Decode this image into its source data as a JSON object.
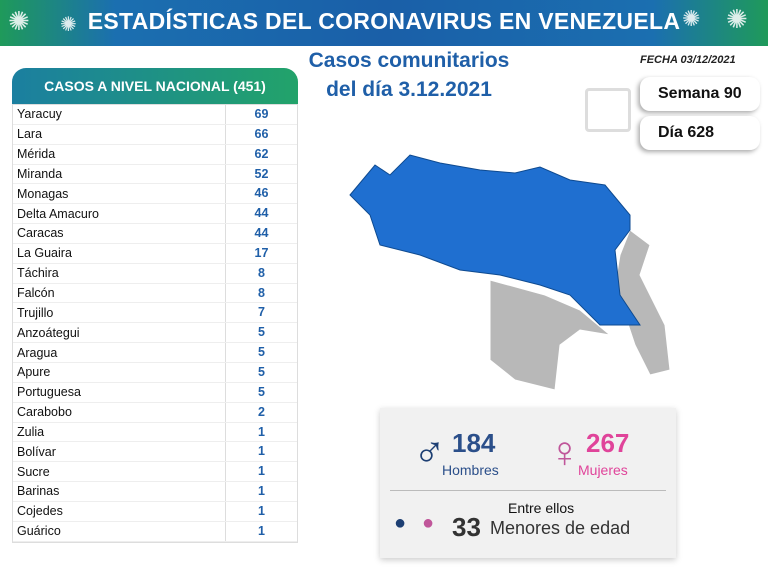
{
  "header": {
    "title": "ESTADÍSTICAS DEL CORONAVIRUS EN VENEZUELA"
  },
  "subtitle": {
    "line1": "Casos comunitarios",
    "line2": "del día 3.12.2021"
  },
  "fecha": "FECHA 03/12/2021",
  "semana": "Semana 90",
  "dia": "Día 628",
  "table": {
    "title": "CASOS A NIVEL NACIONAL  (451)",
    "rows": [
      {
        "name": "Yaracuy",
        "value": "69"
      },
      {
        "name": "Lara",
        "value": "66"
      },
      {
        "name": "Mérida",
        "value": "62"
      },
      {
        "name": "Miranda",
        "value": "52"
      },
      {
        "name": "Monagas",
        "value": "46"
      },
      {
        "name": "Delta Amacuro",
        "value": "44"
      },
      {
        "name": "Caracas",
        "value": "44"
      },
      {
        "name": "La Guaira",
        "value": "17"
      },
      {
        "name": "Táchira",
        "value": "8"
      },
      {
        "name": "Falcón",
        "value": "8"
      },
      {
        "name": "Trujillo",
        "value": "7"
      },
      {
        "name": "Anzoátegui",
        "value": "5"
      },
      {
        "name": "Aragua",
        "value": "5"
      },
      {
        "name": "Apure",
        "value": "5"
      },
      {
        "name": "Portuguesa",
        "value": "5"
      },
      {
        "name": "Carabobo",
        "value": "2"
      },
      {
        "name": "Zulia",
        "value": "1"
      },
      {
        "name": "Bolívar",
        "value": "1"
      },
      {
        "name": "Sucre",
        "value": "1"
      },
      {
        "name": "Barinas",
        "value": "1"
      },
      {
        "name": "Cojedes",
        "value": "1"
      },
      {
        "name": "Guárico",
        "value": "1"
      }
    ]
  },
  "stats": {
    "hombres_count": "184",
    "hombres_label": "Hombres",
    "mujeres_count": "267",
    "mujeres_label": "Mujeres",
    "entre": "Entre ellos",
    "menores_count": "33",
    "menores_label": "Menores de edad"
  },
  "colors": {
    "blue": "#1f5fa8",
    "pink": "#e0449a",
    "map_blue": "#1f6fd0",
    "map_gray": "#b8b8b8"
  }
}
